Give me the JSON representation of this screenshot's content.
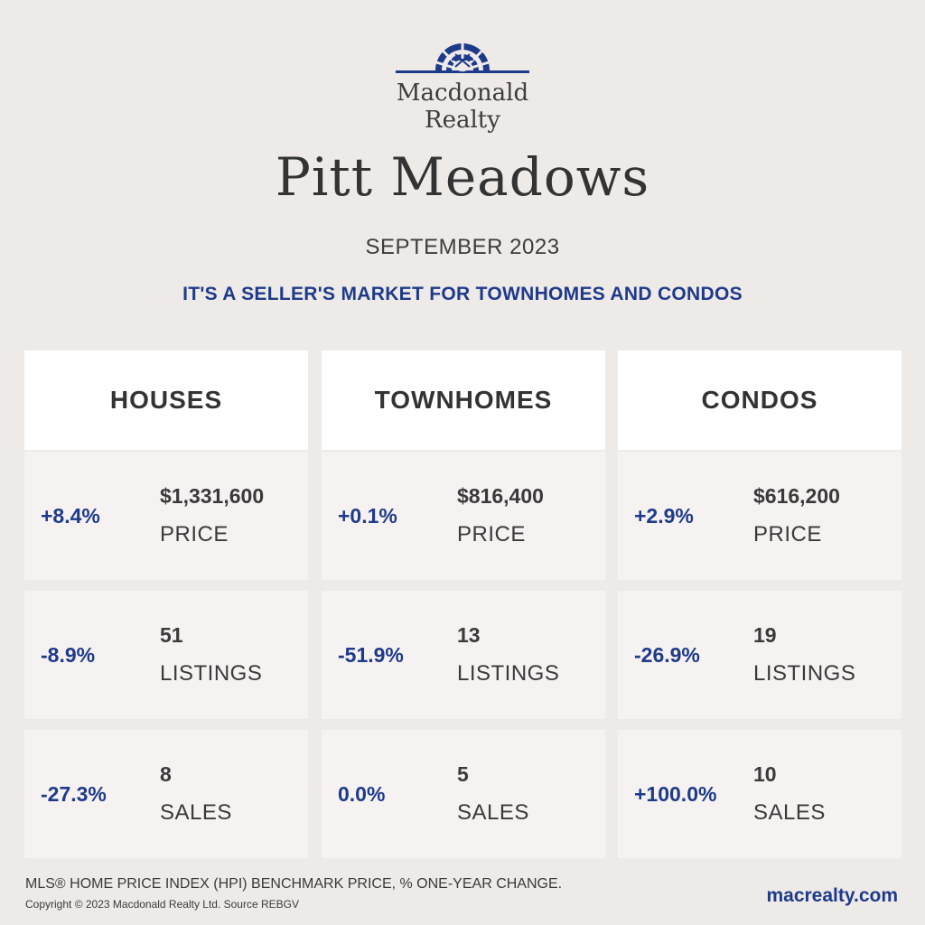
{
  "brand": {
    "line1": "Macdonald",
    "line2": "Realty",
    "color": "#1e3a8a"
  },
  "city": "Pitt Meadows",
  "month": "SEPTEMBER 2023",
  "tagline": "IT'S A SELLER'S MARKET FOR TOWNHOMES AND CONDOS",
  "columns": [
    {
      "title": "HOUSES",
      "rows": [
        {
          "change": "+8.4%",
          "value": "$1,331,600",
          "label": "PRICE"
        },
        {
          "change": "-8.9%",
          "value": "51",
          "label": "LISTINGS"
        },
        {
          "change": "-27.3%",
          "value": "8",
          "label": "SALES"
        }
      ]
    },
    {
      "title": "TOWNHOMES",
      "rows": [
        {
          "change": "+0.1%",
          "value": "$816,400",
          "label": "PRICE"
        },
        {
          "change": "-51.9%",
          "value": "13",
          "label": "LISTINGS"
        },
        {
          "change": "0.0%",
          "value": "5",
          "label": "SALES"
        }
      ]
    },
    {
      "title": "CONDOS",
      "rows": [
        {
          "change": "+2.9%",
          "value": "$616,200",
          "label": "PRICE"
        },
        {
          "change": "-26.9%",
          "value": "19",
          "label": "LISTINGS"
        },
        {
          "change": "+100.0%",
          "value": "10",
          "label": "SALES"
        }
      ]
    }
  ],
  "footer": {
    "note": "MLS® HOME PRICE INDEX (HPI) BENCHMARK PRICE, % ONE-YEAR CHANGE.",
    "copyright": "Copyright © 2023 Macdonald Realty Ltd. Source REBGV",
    "website": "macrealty.com"
  }
}
